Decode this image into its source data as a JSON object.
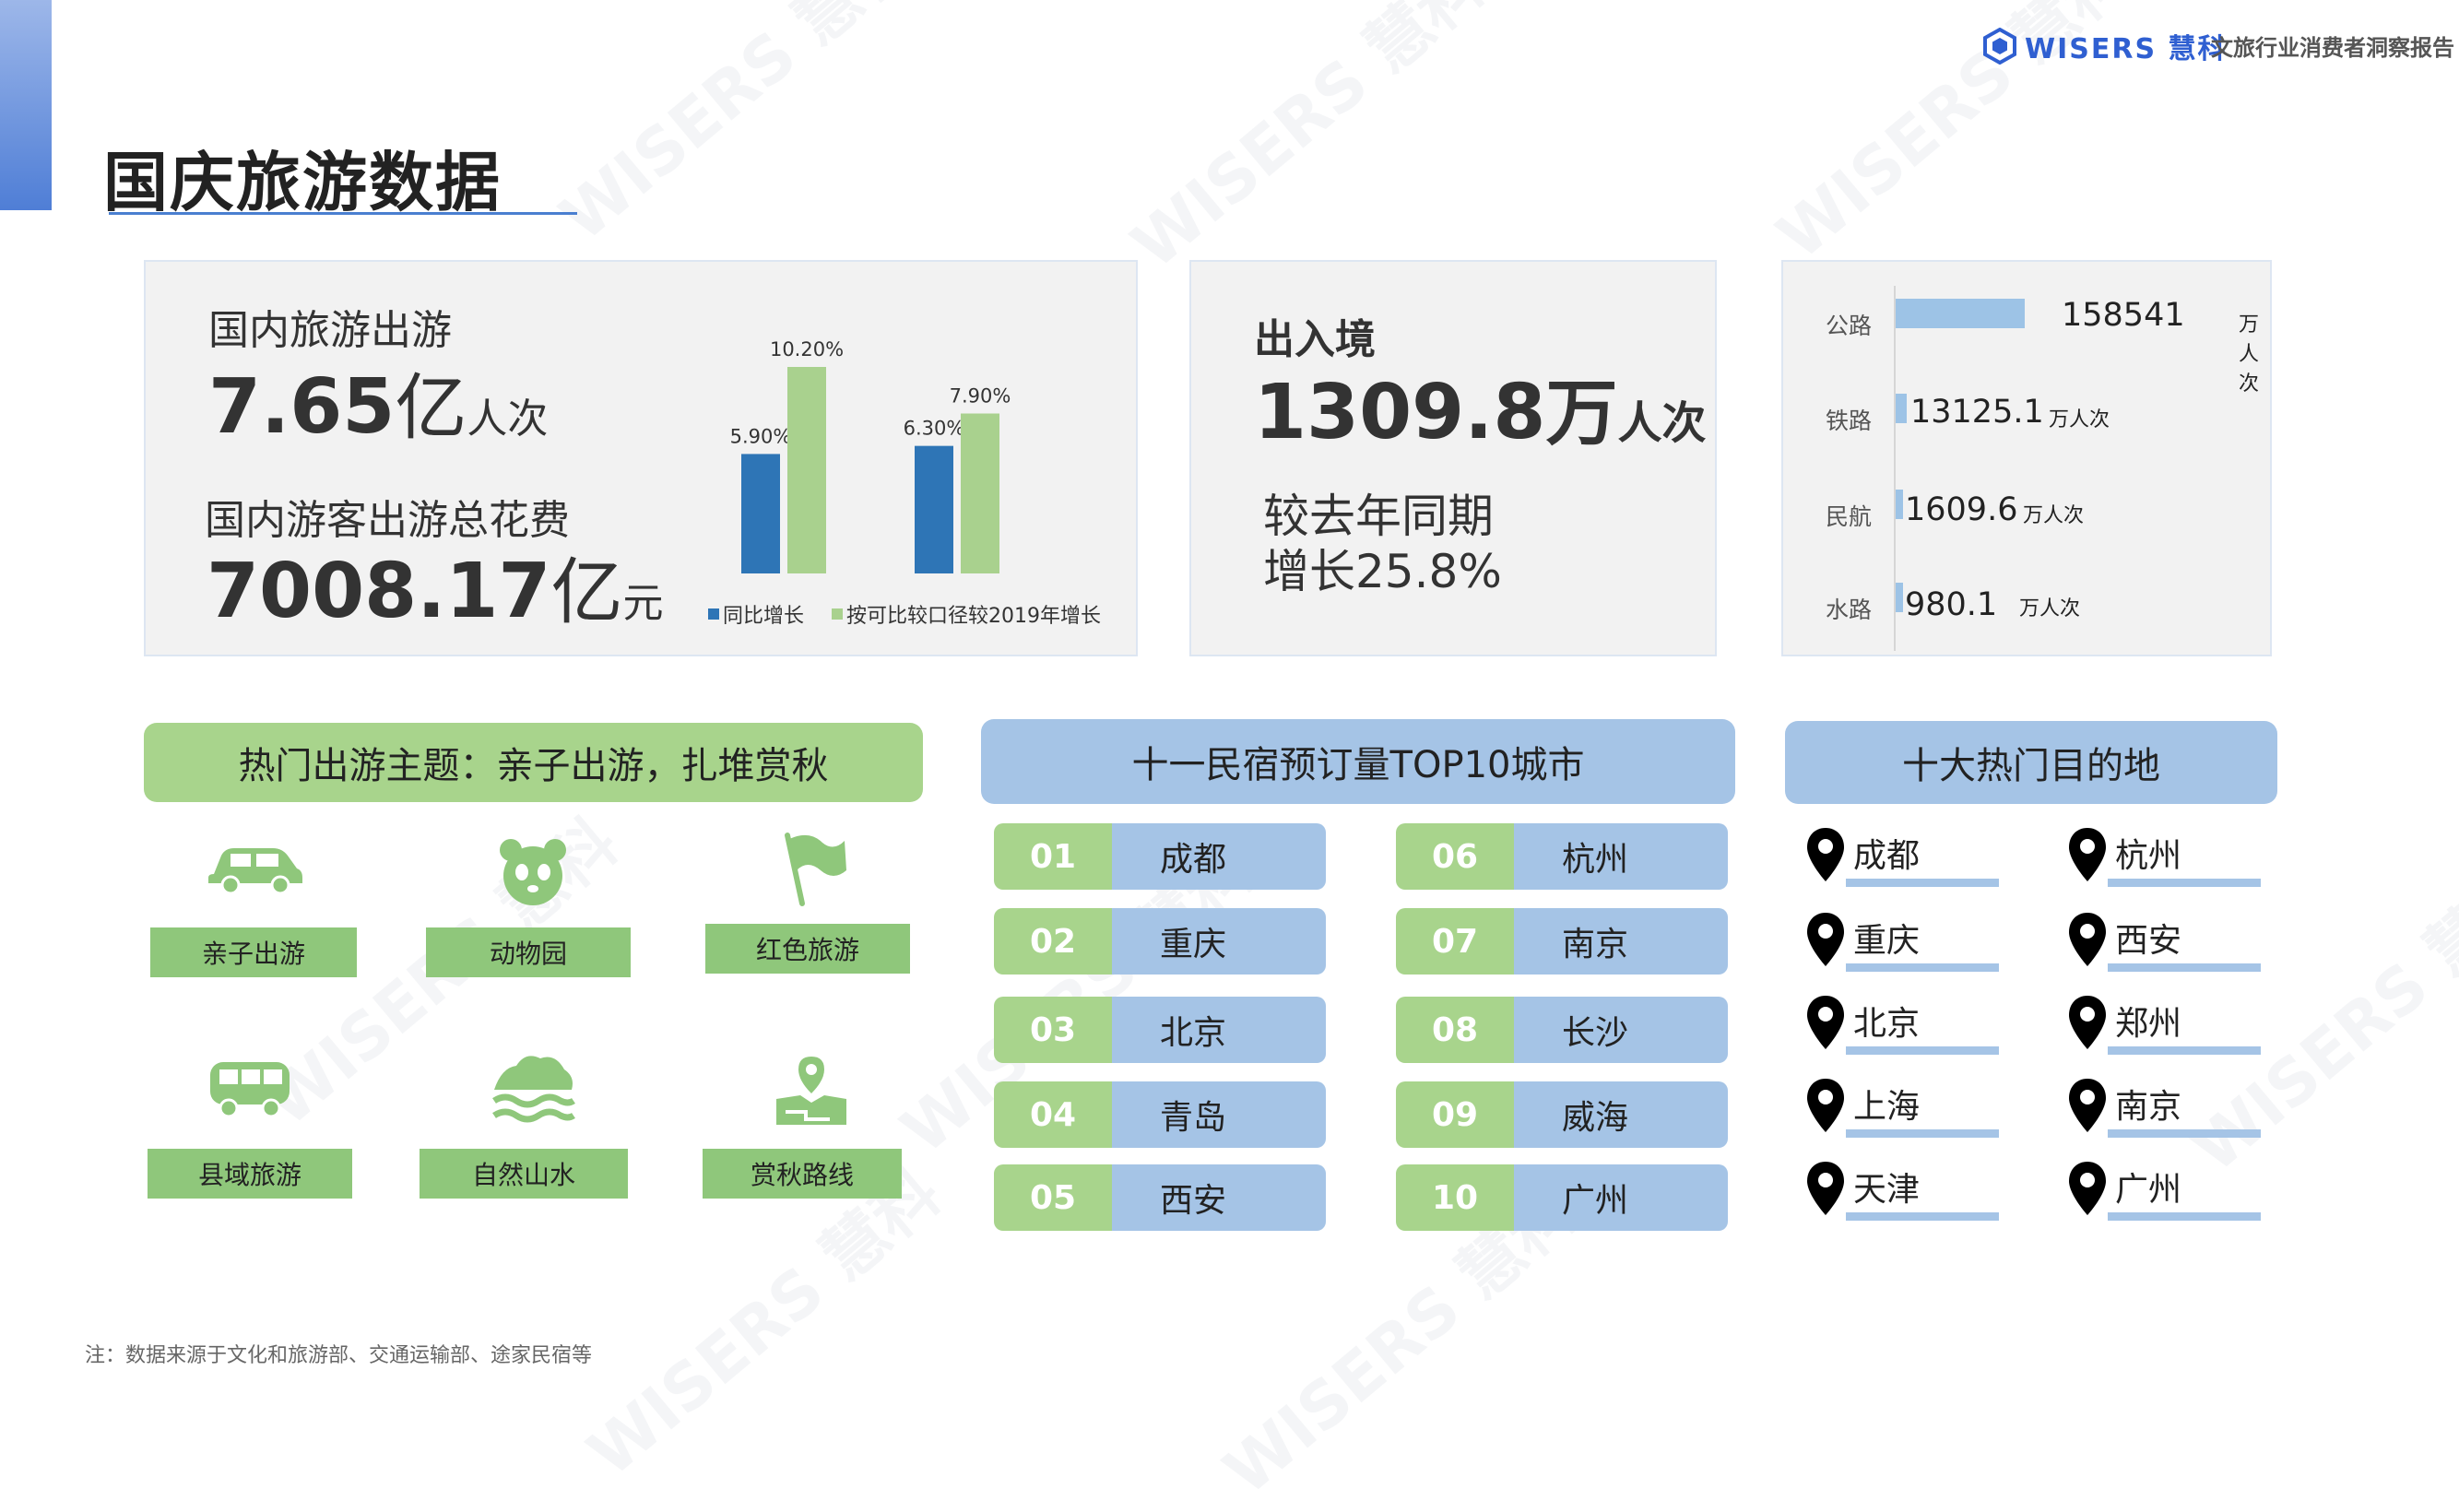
{
  "page": {
    "title": "国庆旅游数据"
  },
  "brand": {
    "logo_text": "WISERS 慧科",
    "report_name": "文旅行业消费者洞察报告",
    "watermark": "WISERS 慧科"
  },
  "domestic": {
    "trips_label": "国内旅游出游",
    "trips_value": "7.65",
    "trips_unit_big": "亿",
    "trips_unit_small": "人次",
    "spend_label": "国内游客出游总花费",
    "spend_value": "7008.17",
    "spend_unit_big": "亿",
    "spend_unit_small": "元"
  },
  "chart_data": {
    "type": "bar",
    "categories": [
      "国内旅游出游",
      "国内游客出游总花费"
    ],
    "series": [
      {
        "name": "同比增长",
        "values": [
          5.9,
          6.3
        ],
        "labels": [
          "5.90%",
          "6.30%"
        ],
        "color": "#2e75b6"
      },
      {
        "name": "按可比较口径较2019年增长",
        "values": [
          10.2,
          7.9
        ],
        "labels": [
          "10.20%",
          "7.90%"
        ],
        "color": "#a9d18e"
      }
    ],
    "ylim": [
      0,
      10.2
    ]
  },
  "cross_border": {
    "label": "出入境",
    "value": "1309.8",
    "unit_big": "万",
    "unit_small": "人次",
    "growth_line1": "较去年同期",
    "growth_line2": "增长25.8%"
  },
  "transport": [
    {
      "mode": "公路",
      "value": "158541",
      "unit": "万人次",
      "amount": 158541
    },
    {
      "mode": "铁路",
      "value": "13125.1",
      "unit": "万人次",
      "amount": 13125.1
    },
    {
      "mode": "民航",
      "value": "1609.6",
      "unit": "万人次",
      "amount": 1609.6
    },
    {
      "mode": "水路",
      "value": "980.1",
      "unit": "万人次",
      "amount": 980.1
    }
  ],
  "themes": {
    "header": "热门出游主题：亲子出游，扎堆赏秋",
    "items": [
      {
        "label": "亲子出游",
        "icon": "car-icon"
      },
      {
        "label": "动物园",
        "icon": "panda-icon"
      },
      {
        "label": "红色旅游",
        "icon": "flag-icon"
      },
      {
        "label": "县域旅游",
        "icon": "bus-icon"
      },
      {
        "label": "自然山水",
        "icon": "mountain-icon"
      },
      {
        "label": "赏秋路线",
        "icon": "map-pin-route-icon"
      }
    ]
  },
  "homestay": {
    "header": "十一民宿预订量TOP10城市",
    "items": [
      {
        "rank": "01",
        "city": "成都"
      },
      {
        "rank": "02",
        "city": "重庆"
      },
      {
        "rank": "03",
        "city": "北京"
      },
      {
        "rank": "04",
        "city": "青岛"
      },
      {
        "rank": "05",
        "city": "西安"
      },
      {
        "rank": "06",
        "city": "杭州"
      },
      {
        "rank": "07",
        "city": "南京"
      },
      {
        "rank": "08",
        "city": "长沙"
      },
      {
        "rank": "09",
        "city": "威海"
      },
      {
        "rank": "10",
        "city": "广州"
      }
    ]
  },
  "destinations": {
    "header": "十大热门目的地",
    "items": [
      "成都",
      "重庆",
      "北京",
      "上海",
      "天津",
      "杭州",
      "西安",
      "郑州",
      "南京",
      "广州"
    ]
  },
  "footnote": "注：数据来源于文化和旅游部、交通运输部、途家民宿等"
}
